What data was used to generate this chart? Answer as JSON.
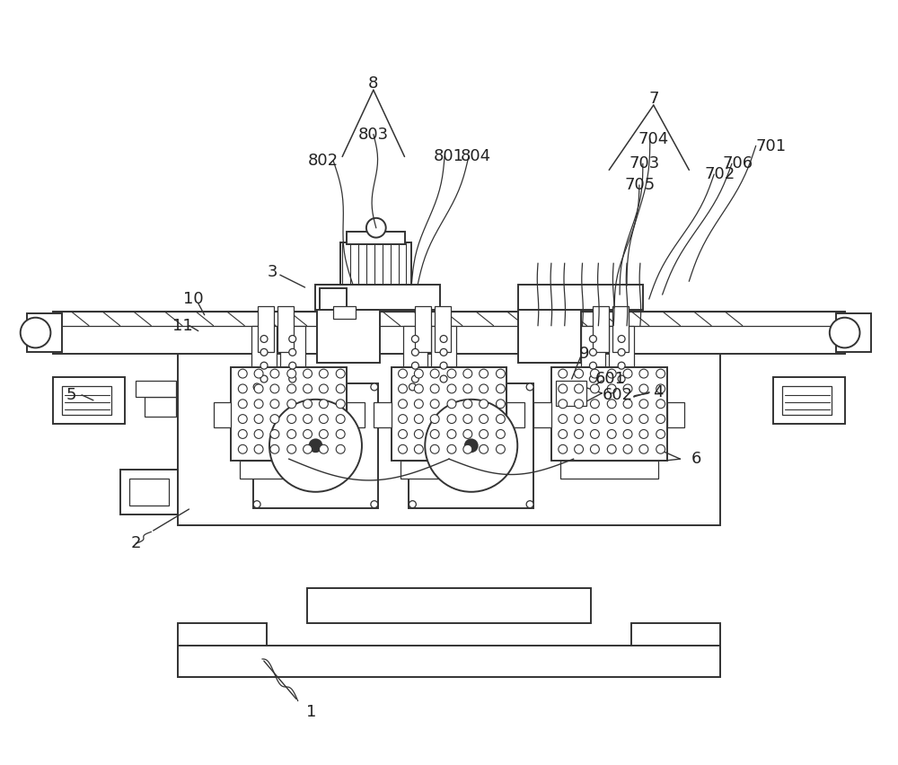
{
  "bg_color": "#ffffff",
  "line_color": "#333333",
  "lw": 1.4,
  "lw_thin": 0.9,
  "lw_thick": 2.0,
  "label_fontsize": 13,
  "label_color": "#222222"
}
